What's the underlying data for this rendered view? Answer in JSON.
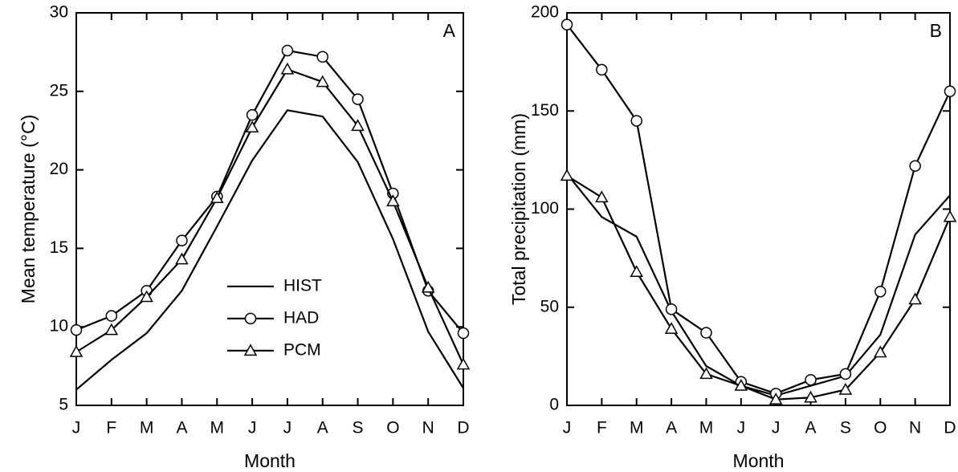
{
  "chart_data": [
    {
      "type": "line",
      "panel_label": "A",
      "xlabel": "Month",
      "ylabel": "Mean temperature (°C)",
      "categories": [
        "J",
        "F",
        "M",
        "A",
        "M",
        "J",
        "J",
        "A",
        "S",
        "O",
        "N",
        "D"
      ],
      "ylim": [
        5,
        30
      ],
      "yticks": [
        5,
        10,
        15,
        20,
        25,
        30
      ],
      "legend": "lower center",
      "series": [
        {
          "name": "HIST",
          "color": "#000000",
          "marker": "none",
          "values": [
            6.0,
            7.9,
            9.6,
            12.3,
            16.4,
            20.6,
            23.8,
            23.4,
            20.5,
            15.6,
            9.7,
            6.1
          ]
        },
        {
          "name": "HAD",
          "color": "#000000",
          "marker": "circle",
          "values": [
            9.8,
            10.7,
            12.3,
            15.5,
            18.3,
            23.5,
            27.6,
            27.2,
            24.5,
            18.5,
            12.3,
            9.6
          ]
        },
        {
          "name": "PCM",
          "color": "#000000",
          "marker": "triangle",
          "values": [
            8.4,
            9.8,
            11.9,
            14.3,
            18.2,
            22.7,
            26.4,
            25.6,
            22.8,
            18.0,
            12.5,
            7.6
          ]
        }
      ]
    },
    {
      "type": "line",
      "panel_label": "B",
      "xlabel": "Month",
      "ylabel": "Total precipitation (mm)",
      "categories": [
        "J",
        "F",
        "M",
        "A",
        "M",
        "J",
        "J",
        "A",
        "S",
        "O",
        "N",
        "D"
      ],
      "ylim": [
        0,
        200
      ],
      "yticks": [
        0,
        50,
        100,
        150,
        200
      ],
      "series": [
        {
          "color": "#000000",
          "marker": "none",
          "values": [
            118,
            96,
            86,
            48,
            20,
            10,
            5,
            10,
            15,
            36,
            87,
            107
          ]
        },
        {
          "color": "#000000",
          "marker": "circle",
          "values": [
            194,
            171,
            145,
            49,
            37,
            12,
            6,
            13,
            16,
            58,
            122,
            160
          ]
        },
        {
          "color": "#000000",
          "marker": "triangle",
          "values": [
            117,
            106,
            68,
            39,
            16,
            10,
            3,
            4,
            8,
            27,
            54,
            96
          ]
        }
      ]
    }
  ]
}
